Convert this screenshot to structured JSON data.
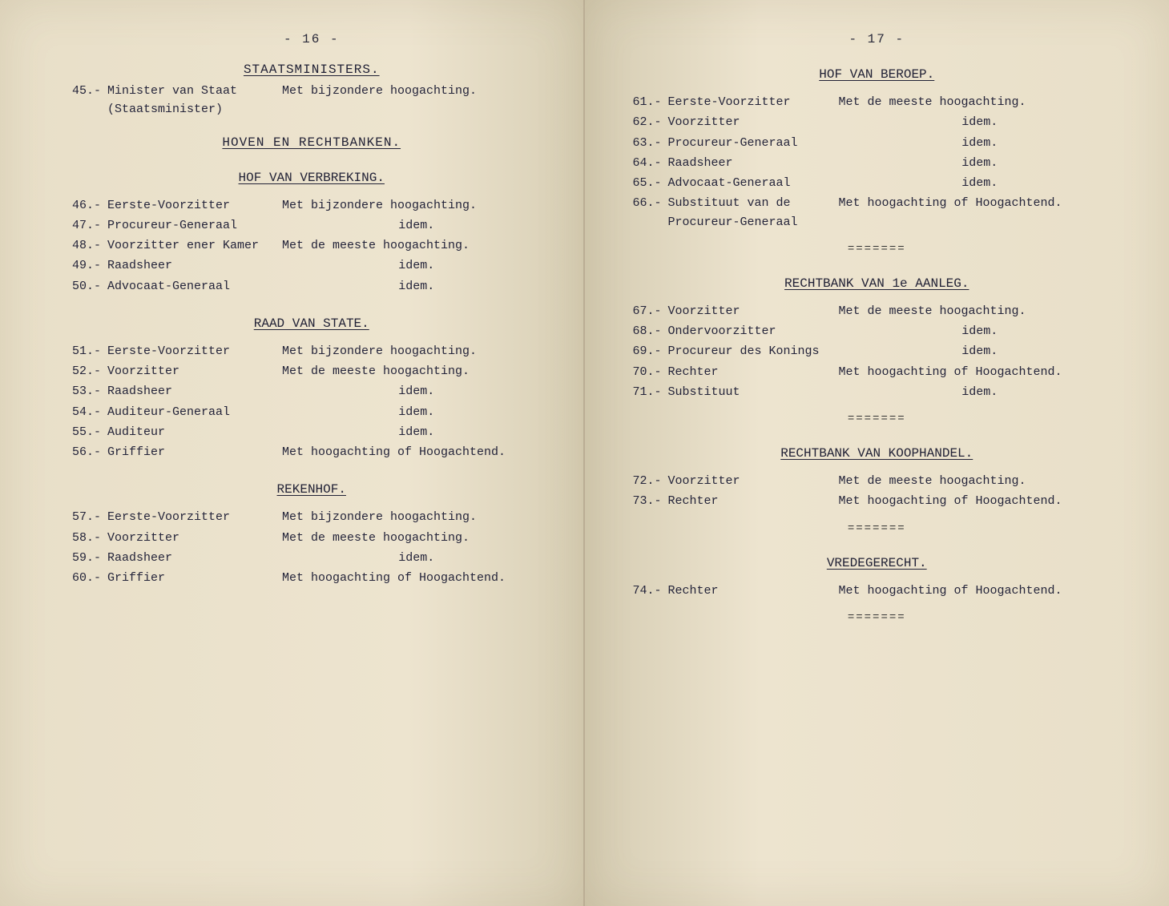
{
  "left": {
    "page_number": "- 16 -",
    "sections": [
      {
        "title": "STAATSMINISTERS.",
        "entries": [
          {
            "n": "45.-",
            "role": "Minister van Staat\n(Staatsminister)",
            "sal": "Met bijzondere hoogachting."
          }
        ]
      },
      {
        "title": "HOVEN EN RECHTBANKEN.",
        "entries": []
      },
      {
        "title": "HOF VAN VERBREKING.",
        "entries": [
          {
            "n": "46.-",
            "role": "Eerste-Voorzitter",
            "sal": "Met bijzondere hoogachting."
          },
          {
            "n": "47.-",
            "role": "Procureur-Generaal",
            "sal": "idem.",
            "center": true
          },
          {
            "n": "48.-",
            "role": "Voorzitter ener Kamer",
            "sal": "Met de meeste hoogachting."
          },
          {
            "n": "49.-",
            "role": "Raadsheer",
            "sal": "idem.",
            "center": true
          },
          {
            "n": "50.-",
            "role": "Advocaat-Generaal",
            "sal": "idem.",
            "center": true
          }
        ]
      },
      {
        "title": "RAAD VAN STATE.",
        "entries": [
          {
            "n": "51.-",
            "role": "Eerste-Voorzitter",
            "sal": "Met bijzondere hoogachting."
          },
          {
            "n": "52.-",
            "role": "Voorzitter",
            "sal": "Met de meeste hoogachting."
          },
          {
            "n": "53.-",
            "role": "Raadsheer",
            "sal": "idem.",
            "center": true
          },
          {
            "n": "54.-",
            "role": "Auditeur-Generaal",
            "sal": "idem.",
            "center": true
          },
          {
            "n": "55.-",
            "role": "Auditeur",
            "sal": "idem.",
            "center": true
          },
          {
            "n": "56.-",
            "role": "Griffier",
            "sal": "Met hoogachting of Hoogachtend."
          }
        ]
      },
      {
        "title": "REKENHOF.",
        "entries": [
          {
            "n": "57.-",
            "role": "Eerste-Voorzitter",
            "sal": "Met bijzondere hoogachting."
          },
          {
            "n": "58.-",
            "role": "Voorzitter",
            "sal": "Met de meeste hoogachting."
          },
          {
            "n": "59.-",
            "role": "Raadsheer",
            "sal": "idem.",
            "center": true
          },
          {
            "n": "60.-",
            "role": "Griffier",
            "sal": "Met hoogachting of Hoogachtend."
          }
        ]
      }
    ]
  },
  "right": {
    "page_number": "- 17 -",
    "sections": [
      {
        "title": "HOF VAN BEROEP.",
        "entries": [
          {
            "n": "61.-",
            "role": "Eerste-Voorzitter",
            "sal": "Met de meeste hoogachting."
          },
          {
            "n": "62.-",
            "role": "Voorzitter",
            "sal": "idem.",
            "center": true
          },
          {
            "n": "63.-",
            "role": "Procureur-Generaal",
            "sal": "idem.",
            "center": true
          },
          {
            "n": "64.-",
            "role": "Raadsheer",
            "sal": "idem.",
            "center": true
          },
          {
            "n": "65.-",
            "role": "Advocaat-Generaal",
            "sal": "idem.",
            "center": true
          },
          {
            "n": "66.-",
            "role": "Substituut van de Procureur-Generaal",
            "sal": "Met hoogachting of Hoogachtend."
          }
        ],
        "divider": "======="
      },
      {
        "title": "RECHTBANK VAN 1e AANLEG.",
        "entries": [
          {
            "n": "67.-",
            "role": "Voorzitter",
            "sal": "Met de meeste hoogachting."
          },
          {
            "n": "68.-",
            "role": "Ondervoorzitter",
            "sal": "idem.",
            "center": true
          },
          {
            "n": "69.-",
            "role": "Procureur des Konings",
            "sal": "idem.",
            "center": true
          },
          {
            "n": "70.-",
            "role": "Rechter",
            "sal": "Met hoogachting of Hoogachtend."
          },
          {
            "n": "71.-",
            "role": "Substituut",
            "sal": "idem.",
            "center": true
          }
        ],
        "divider": "======="
      },
      {
        "title": "RECHTBANK VAN KOOPHANDEL.",
        "entries": [
          {
            "n": "72.-",
            "role": "Voorzitter",
            "sal": "Met de meeste hoogachting."
          },
          {
            "n": "73.-",
            "role": "Rechter",
            "sal": "Met hoogachting of Hoogachtend."
          }
        ],
        "divider": "======="
      },
      {
        "title": "VREDEGERECHT.",
        "entries": [
          {
            "n": "74.-",
            "role": "Rechter",
            "sal": "Met hoogachting of Hoogachtend."
          }
        ],
        "divider": "======="
      }
    ]
  },
  "colors": {
    "paper": "#ede4cf",
    "ink": "#24243a",
    "background": "#3a3a3a"
  }
}
